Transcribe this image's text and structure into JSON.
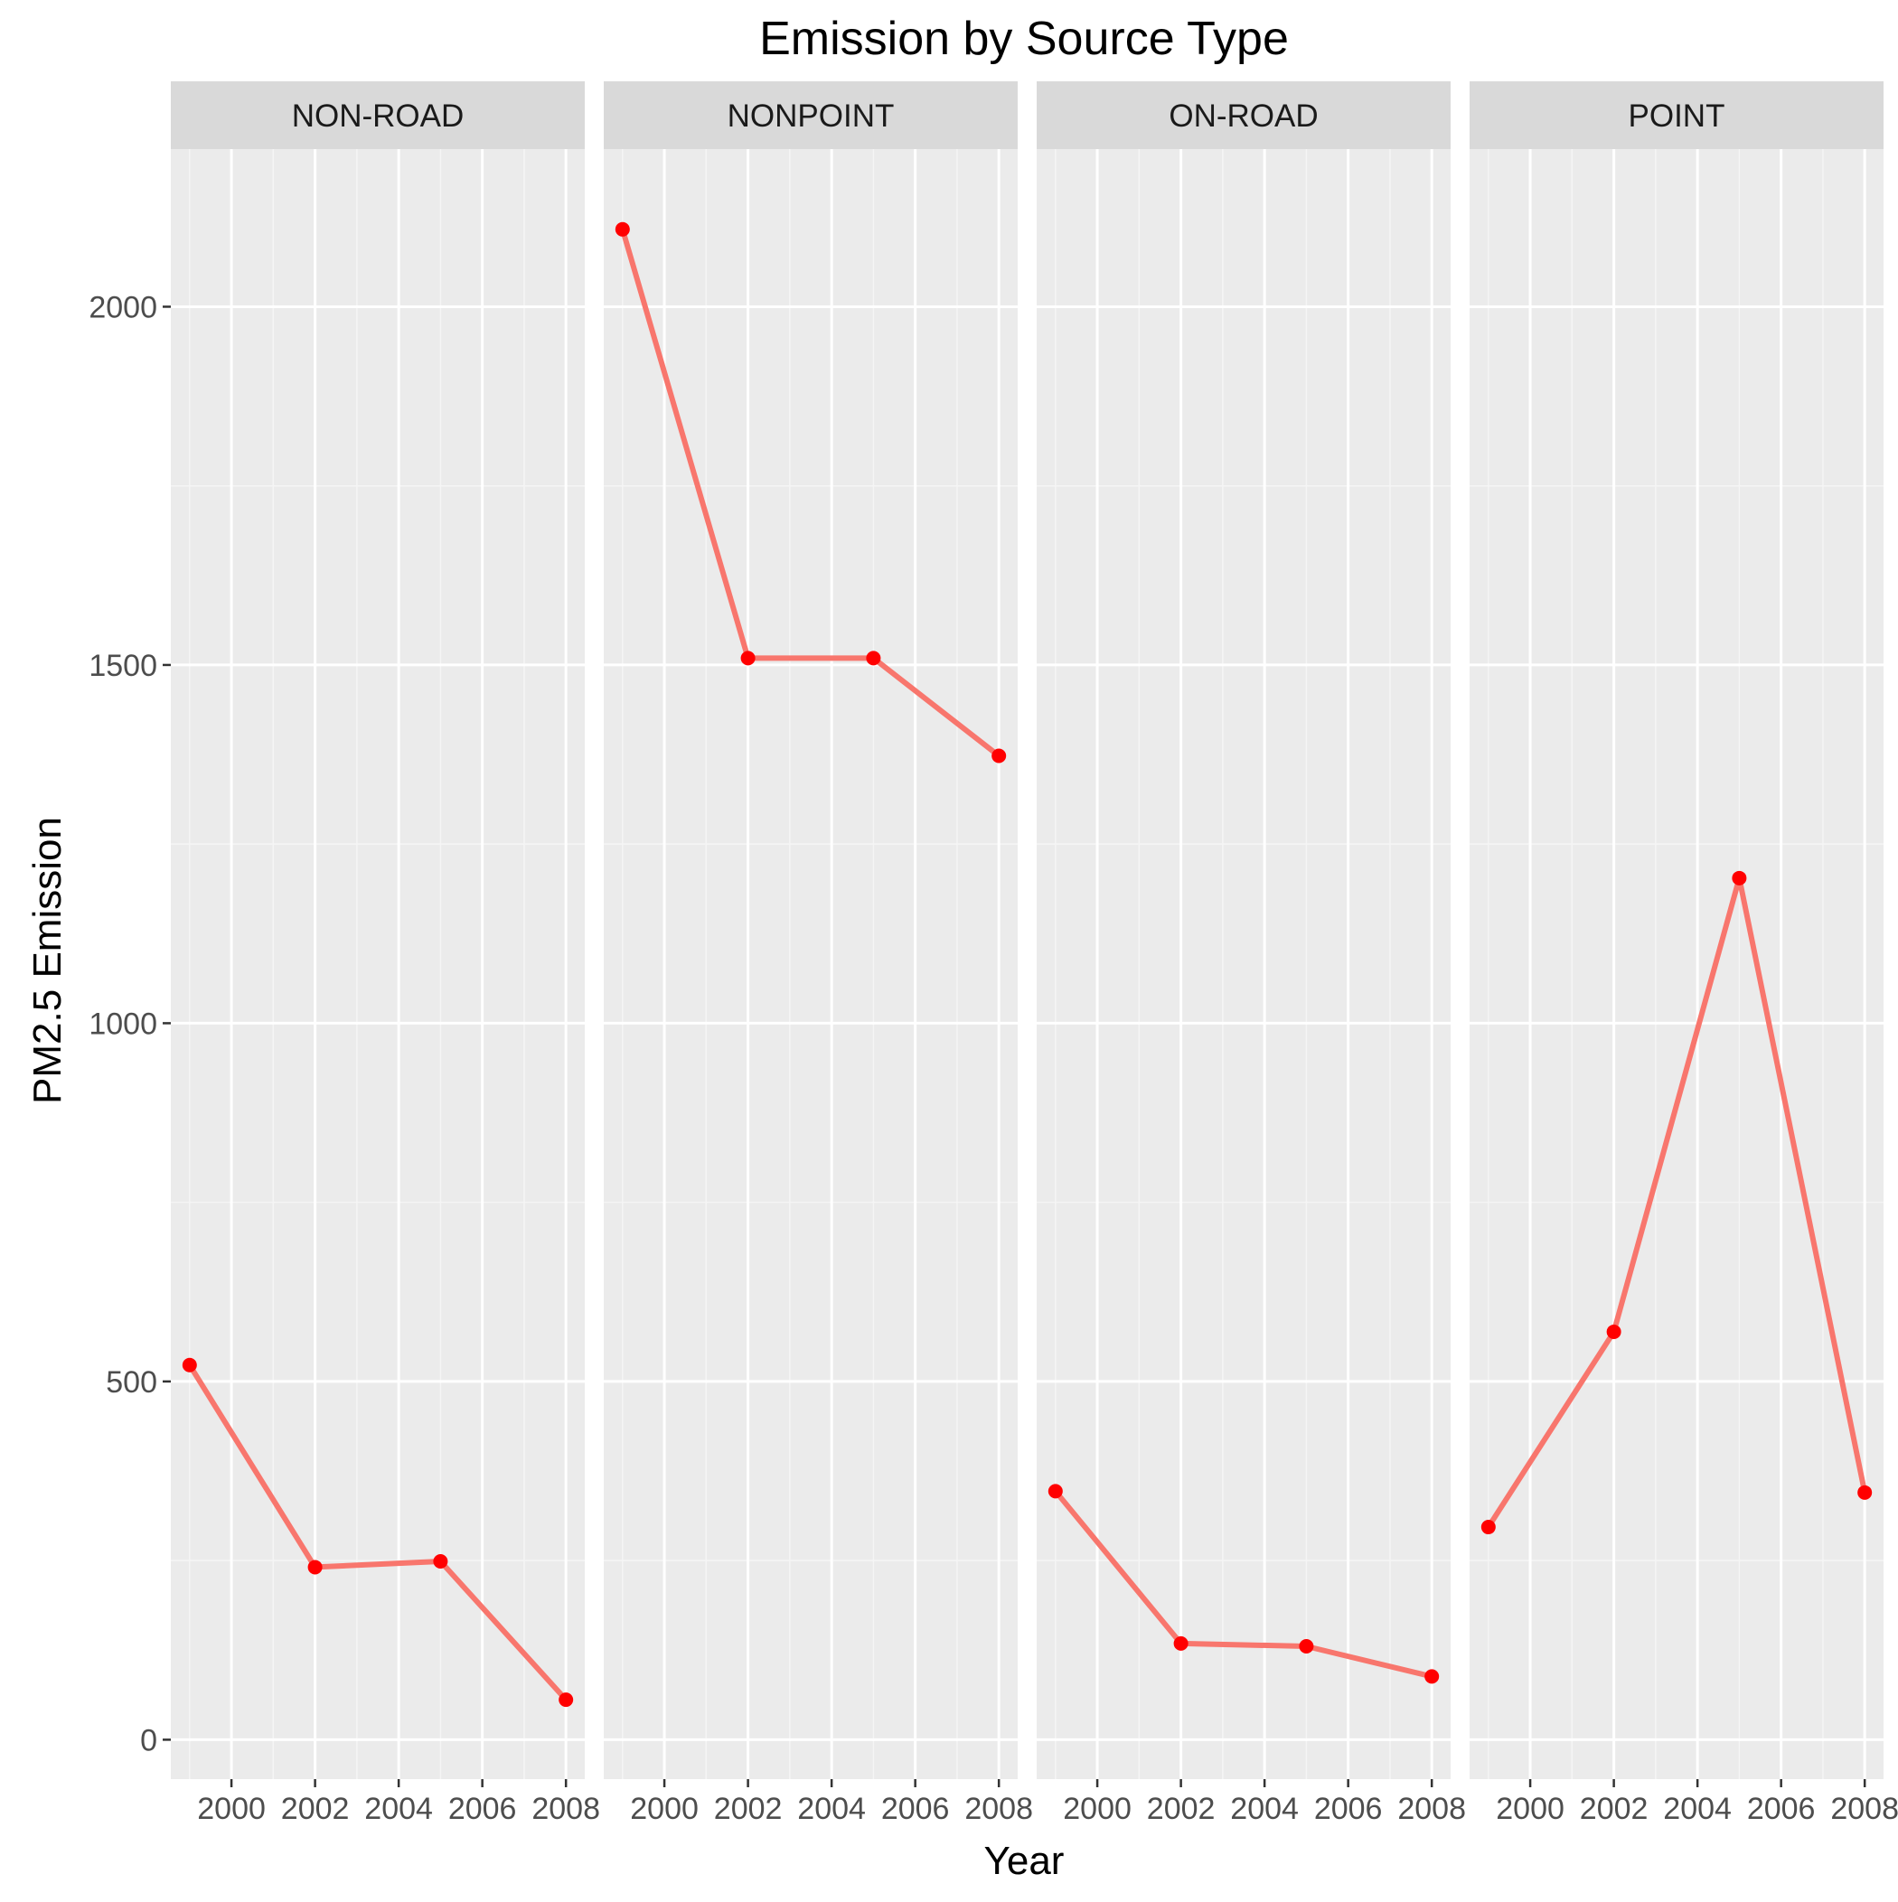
{
  "chart_data": {
    "type": "line",
    "title": "Emission by Source Type",
    "xlabel": "Year",
    "ylabel": "PM2.5 Emission",
    "facets": [
      "NON-ROAD",
      "NONPOINT",
      "ON-ROAD",
      "POINT"
    ],
    "x": [
      1999,
      2002,
      2005,
      2008
    ],
    "x_ticks": [
      2000,
      2002,
      2004,
      2006,
      2008
    ],
    "x_tick_labels": [
      "2000",
      "2002",
      "2004",
      "2006",
      "2008"
    ],
    "xlim": [
      1998.55,
      2008.45
    ],
    "y_ticks": [
      0,
      500,
      1000,
      1500,
      2000
    ],
    "y_tick_labels": [
      "0",
      "500",
      "1000",
      "1500",
      "2000"
    ],
    "ylim": [
      -55,
      2220
    ],
    "grid": true,
    "series": [
      {
        "facet": "NON-ROAD",
        "values": [
          522.9,
          240.8,
          248.9,
          55.8
        ]
      },
      {
        "facet": "NONPOINT",
        "values": [
          2108.0,
          1509.5,
          1509.5,
          1373.2
        ]
      },
      {
        "facet": "ON-ROAD",
        "values": [
          346.8,
          134.3,
          130.4,
          88.3
        ]
      },
      {
        "facet": "POINT",
        "values": [
          296.8,
          569.3,
          1202.5,
          344.98
        ]
      }
    ],
    "colors": {
      "line": "#f8766d",
      "point": "#ff0000",
      "panel_background": "#ebebeb",
      "strip_background": "#d9d9d9",
      "grid_major": "#ffffff",
      "grid_minor": "#f5f5f5"
    }
  }
}
